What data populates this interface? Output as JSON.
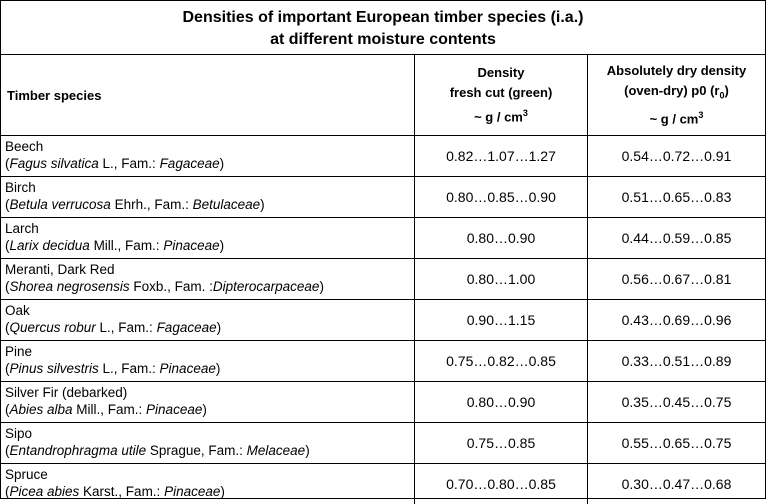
{
  "title": {
    "line1": "Densities of important European timber species (i.a.)",
    "line2": "at different moisture contents"
  },
  "header": {
    "species": "Timber species",
    "fresh_line1": "Density",
    "fresh_line2": "fresh cut (green)",
    "fresh_unit_pre": "~ g / cm",
    "fresh_unit_sup": "3",
    "dry_line1": "Absolutely dry density",
    "dry_line2_pre": "(oven-dry) p0 (r",
    "dry_line2_sub": "0",
    "dry_line2_post": ")",
    "dry_unit_pre": "~ g / cm",
    "dry_unit_sup": "3"
  },
  "rows": [
    {
      "name": "Beech",
      "genus": "Fagus silvatica",
      "author": " L.,  Fam.: ",
      "family": "Fagaceae",
      "fresh": "0.82…1.07…1.27",
      "dry": "0.54…0.72…0.91"
    },
    {
      "name": "Birch",
      "genus": "Betula verrucosa",
      "author": " Ehrh., Fam.: ",
      "family": "Betulaceae",
      "fresh": "0.80…0.85…0.90",
      "dry": "0.51…0.65…0.83"
    },
    {
      "name": "Larch",
      "genus": "Larix decidua",
      "author": " Mill., Fam.: ",
      "family": "Pinaceae",
      "fresh": "0.80…0.90",
      "dry": "0.44…0.59…0.85"
    },
    {
      "name": "Meranti, Dark Red",
      "genus": "Shorea negrosensis",
      "author": " Foxb.,  Fam. :",
      "family": "Dipterocarpaceae",
      "fresh": "0.80…1.00",
      "dry": "0.56…0.67…0.81"
    },
    {
      "name": "Oak",
      "genus": "Quercus robur",
      "author": " L., Fam.: ",
      "family": "Fagaceae",
      "fresh": "0.90…1.15",
      "dry": "0.43…0.69…0.96"
    },
    {
      "name": "Pine",
      "genus": "Pinus silvestris",
      "author": " L., Fam.: ",
      "family": "Pinaceae",
      "fresh": "0.75…0.82…0.85",
      "dry": "0.33…0.51…0.89"
    },
    {
      "name": "Silver Fir (debarked)",
      "genus": "Abies alba",
      "author": " Mill., Fam.: ",
      "family": "Pinaceae",
      "fresh": "0.80…0.90",
      "dry": "0.35…0.45…0.75"
    },
    {
      "name": "Sipo",
      "genus": "Entandrophragma utile",
      "author": " Sprague, Fam.: ",
      "family": "Melaceae",
      "fresh": "0.75…0.85",
      "dry": "0.55…0.65…0.75"
    },
    {
      "name": "Spruce",
      "genus": "Picea abies",
      "author": " Karst., Fam.: ",
      "family": "Pinaceae",
      "fresh": "0.70…0.80…0.85",
      "dry": "0.30…0.47…0.68"
    }
  ]
}
